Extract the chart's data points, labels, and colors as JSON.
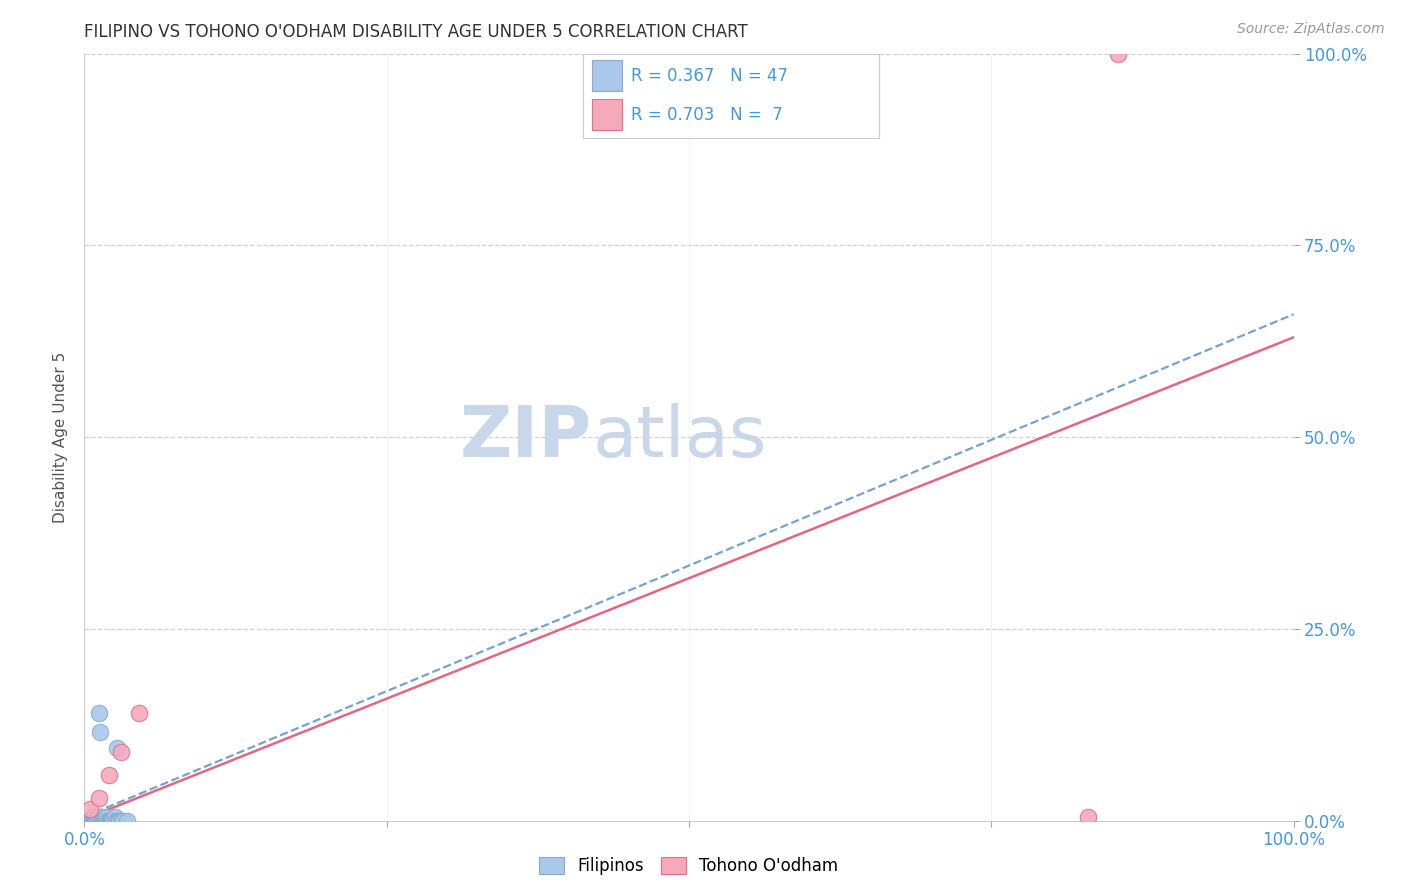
{
  "title": "FILIPINO VS TOHONO O'ODHAM DISABILITY AGE UNDER 5 CORRELATION CHART",
  "source": "Source: ZipAtlas.com",
  "ylabel": "Disability Age Under 5",
  "xlabel": "",
  "xlim": [
    0,
    100
  ],
  "ylim": [
    0,
    100
  ],
  "xticks": [
    0,
    25,
    50,
    75,
    100
  ],
  "yticks": [
    0,
    25,
    50,
    75,
    100
  ],
  "xticklabels": [
    "0.0%",
    "",
    "",
    "",
    "100.0%"
  ],
  "yticklabels_right": [
    "0.0%",
    "25.0%",
    "50.0%",
    "75.0%",
    "100.0%"
  ],
  "filipino_x": [
    0.0,
    0.1,
    0.15,
    0.2,
    0.25,
    0.3,
    0.35,
    0.4,
    0.5,
    0.55,
    0.6,
    0.65,
    0.7,
    0.75,
    0.8,
    0.85,
    0.9,
    0.95,
    1.0,
    1.05,
    1.1,
    1.2,
    1.25,
    1.3,
    1.35,
    1.4,
    1.45,
    1.5,
    1.55,
    1.6,
    1.7,
    1.75,
    1.8,
    1.9,
    2.0,
    2.1,
    2.2,
    2.3,
    2.4,
    2.5,
    2.6,
    2.7,
    2.8,
    2.9,
    3.0,
    3.2,
    3.5
  ],
  "filipino_y": [
    0.0,
    0.0,
    0.0,
    0.0,
    0.0,
    0.0,
    0.0,
    0.0,
    0.0,
    0.0,
    0.0,
    0.0,
    0.5,
    0.0,
    0.0,
    0.0,
    0.0,
    0.0,
    0.5,
    0.0,
    0.5,
    14.0,
    0.5,
    11.5,
    0.0,
    0.0,
    0.0,
    0.0,
    0.0,
    0.0,
    0.0,
    0.0,
    0.5,
    0.0,
    0.0,
    0.0,
    0.0,
    0.0,
    0.0,
    0.5,
    0.0,
    9.5,
    0.0,
    0.0,
    0.0,
    0.0,
    0.0
  ],
  "tohono_x": [
    0.5,
    1.2,
    2.0,
    3.0,
    4.5,
    83.0,
    85.5
  ],
  "tohono_y": [
    1.5,
    3.0,
    6.0,
    9.0,
    14.0,
    0.5,
    100.0
  ],
  "filipino_color": "#aac8ea",
  "filipino_edge_color": "#88aad0",
  "tohono_color": "#f5aabb",
  "tohono_edge_color": "#e07090",
  "filipino_R": 0.367,
  "filipino_N": 47,
  "tohono_R": 0.703,
  "tohono_N": 7,
  "reg_line_filipino_color": "#6699cc",
  "reg_line_tohono_color": "#e05575",
  "reg_fil_x0": 0,
  "reg_fil_y0": 0.5,
  "reg_fil_x1": 100,
  "reg_fil_y1": 66,
  "reg_toh_x0": 0,
  "reg_toh_y0": 0.2,
  "reg_toh_x1": 100,
  "reg_toh_y1": 63,
  "background_color": "#ffffff",
  "watermark_zip": "ZIP",
  "watermark_atlas": "atlas",
  "watermark_color": "#c8d8ea",
  "grid_color": "#cccccc",
  "tick_color": "#4499dd",
  "title_color": "#333333",
  "source_color": "#999999",
  "legend_color": "#4499dd"
}
